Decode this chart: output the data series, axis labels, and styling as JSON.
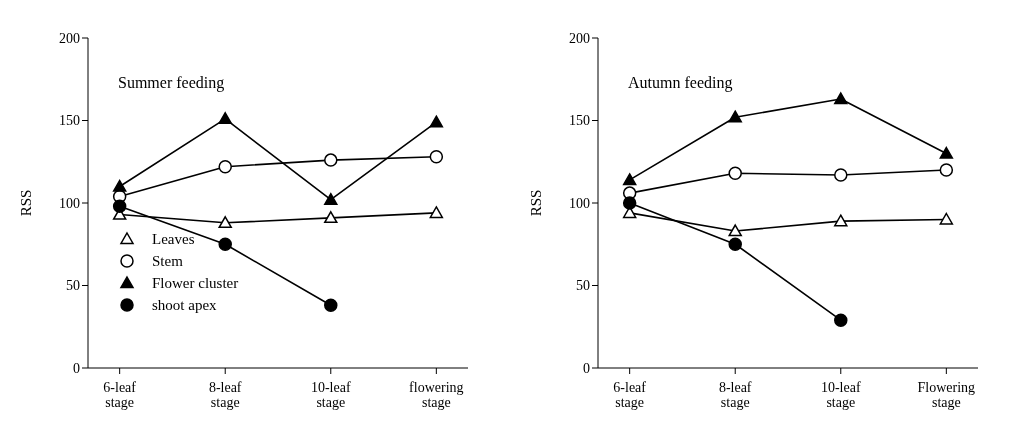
{
  "chart_data": [
    {
      "type": "line",
      "title": "Summer feeding",
      "ylabel": "RSS",
      "categories": [
        "6-leaf stage",
        "8-leaf stage",
        "10-leaf stage",
        "flowering stage"
      ],
      "ylim": [
        0,
        200
      ],
      "yticks": [
        0,
        50,
        100,
        150,
        200
      ],
      "grid": false,
      "legend": "bottom left",
      "line_style": "solid",
      "series": [
        {
          "name": "Leaves",
          "color": "#000000",
          "marker": "triangle-open",
          "values": [
            93,
            88,
            91,
            94
          ]
        },
        {
          "name": "Stem",
          "color": "#000000",
          "marker": "circle-open",
          "values": [
            104,
            122,
            126,
            128
          ]
        },
        {
          "name": "Flower cluster",
          "color": "#000000",
          "marker": "triangle",
          "values": [
            110,
            151,
            102,
            149
          ]
        },
        {
          "name": "shoot apex",
          "color": "#000000",
          "marker": "circle",
          "values": [
            98,
            75,
            38,
            null
          ]
        }
      ]
    },
    {
      "type": "line",
      "title": "Autumn feeding",
      "ylabel": "RSS",
      "categories": [
        "6-leaf stage",
        "8-leaf stage",
        "10-leaf stage",
        "Flowering stage"
      ],
      "ylim": [
        0,
        200
      ],
      "yticks": [
        0,
        50,
        100,
        150,
        200
      ],
      "grid": false,
      "legend": false,
      "line_style": "solid",
      "series": [
        {
          "color": "#000000",
          "marker": "triangle-open",
          "values": [
            94,
            83,
            89,
            90
          ]
        },
        {
          "color": "#000000",
          "marker": "circle-open",
          "values": [
            106,
            118,
            117,
            120
          ]
        },
        {
          "color": "#000000",
          "marker": "triangle",
          "values": [
            114,
            152,
            163,
            130
          ]
        },
        {
          "color": "#000000",
          "marker": "circle",
          "values": [
            100,
            75,
            29,
            null
          ]
        }
      ]
    }
  ]
}
